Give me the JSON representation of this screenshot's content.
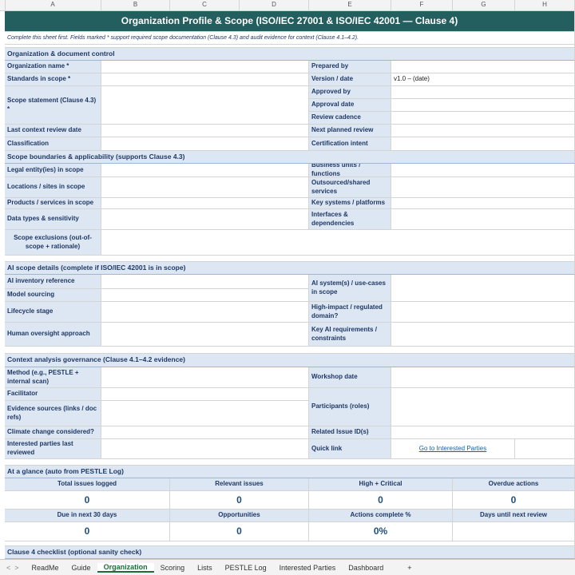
{
  "columns": [
    "A",
    "B",
    "C",
    "D",
    "E",
    "F",
    "G",
    "H"
  ],
  "title": "Organization Profile & Scope (ISO/IEC 27001 & ISO/IEC 42001 — Clause 4)",
  "instruction": "Complete this sheet first. Fields marked * support required scope documentation (Clause 4.3) and audit evidence for context (Clause 4.1–4.2).",
  "org": {
    "section": "Organization & document control",
    "left": [
      "Organization name *",
      "Standards in scope *",
      "Scope statement (Clause 4.3) *",
      "Last context review date",
      "Classification"
    ],
    "right": [
      "Prepared by",
      "Version / date",
      "Approved by",
      "Approval date",
      "Review cadence",
      "Next planned review",
      "Certification intent"
    ],
    "version_value": "v1.0 – (date)"
  },
  "scope": {
    "section": "Scope boundaries & applicability (supports Clause 4.3)",
    "left": [
      "Legal entity(ies) in scope",
      "Locations / sites in scope",
      "Products / services in scope",
      "Data types & sensitivity",
      "Scope exclusions (out-of-scope + rationale)"
    ],
    "right": [
      "Business units / functions",
      "Outsourced/shared services",
      "Key systems / platforms",
      "Interfaces & dependencies"
    ]
  },
  "ai": {
    "section": "AI scope details (complete if ISO/IEC 42001 is in scope)",
    "left": [
      "AI inventory reference",
      "Model sourcing",
      "Lifecycle stage",
      "Human oversight approach"
    ],
    "right": [
      "AI system(s) / use-cases in scope",
      "High-impact / regulated domain?",
      "Key AI requirements / constraints"
    ]
  },
  "context": {
    "section": "Context analysis governance (Clause 4.1–4.2 evidence)",
    "left": [
      "Method (e.g., PESTLE + internal scan)",
      "Facilitator",
      "Evidence sources (links / doc refs)",
      "Climate change considered?",
      "Interested parties last reviewed"
    ],
    "right": [
      "Workshop date",
      "Participants (roles)",
      "Related Issue ID(s)",
      "Quick link"
    ],
    "link": "Go to Interested Parties"
  },
  "glance": {
    "section": "At a glance (auto from PESTLE Log)",
    "kpis": [
      {
        "label": "Total issues logged",
        "value": 0
      },
      {
        "label": "Relevant issues",
        "value": 0
      },
      {
        "label": "High + Critical",
        "value": 0
      },
      {
        "label": "Overdue actions",
        "value": 0
      },
      {
        "label": "Due in next 30 days",
        "value": 0
      },
      {
        "label": "Opportunities",
        "value": 0
      },
      {
        "label": "Actions complete %",
        "value": "0%"
      },
      {
        "label": "Days until next review",
        "value": ""
      }
    ]
  },
  "checklist": {
    "section": "Clause 4 checklist (optional sanity check)"
  },
  "tabs": [
    "ReadMe",
    "Guide",
    "Organization",
    "Scoring",
    "Lists",
    "PESTLE Log",
    "Interested Parties",
    "Dashboard",
    "+"
  ]
}
